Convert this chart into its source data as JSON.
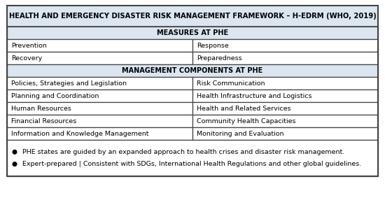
{
  "title": "HEALTH AND EMERGENCY DISASTER RISK MANAGEMENT FRAMEWORK – H-EDRM (WHO, 2019)",
  "section1_header": "MEASURES AT PHE",
  "section1_rows": [
    [
      "Prevention",
      "Response"
    ],
    [
      "Recovery",
      "Preparedness"
    ]
  ],
  "section2_header": "MANAGEMENT COMPONENTS AT PHE",
  "section2_rows": [
    [
      "Policies, Strategies and Legislation",
      "Risk Communication"
    ],
    [
      "Planning and Coordination",
      "Health Infrastructure and Logistics"
    ],
    [
      "Human Resources",
      "Health and Related Services"
    ],
    [
      "Financial Resources",
      "Community Health Capacities"
    ],
    [
      "Information and Knowledge Management",
      "Monitoring and Evaluation"
    ]
  ],
  "bullets": [
    "PHE states are guided by an expanded approach to health crises and disaster risk management.",
    "Expert-prepared | Consistent with SDGs, International Health Regulations and other global guidelines."
  ],
  "title_bg": "#dce6f1",
  "header_bg": "#dce6f1",
  "row_bg": "#ffffff",
  "border_color": "#444444",
  "text_color": "#000000",
  "title_fontsize": 7.2,
  "header_fontsize": 7.0,
  "row_fontsize": 6.8,
  "bullet_fontsize": 6.8,
  "fig_width": 5.5,
  "fig_height": 3.06,
  "dpi": 100
}
